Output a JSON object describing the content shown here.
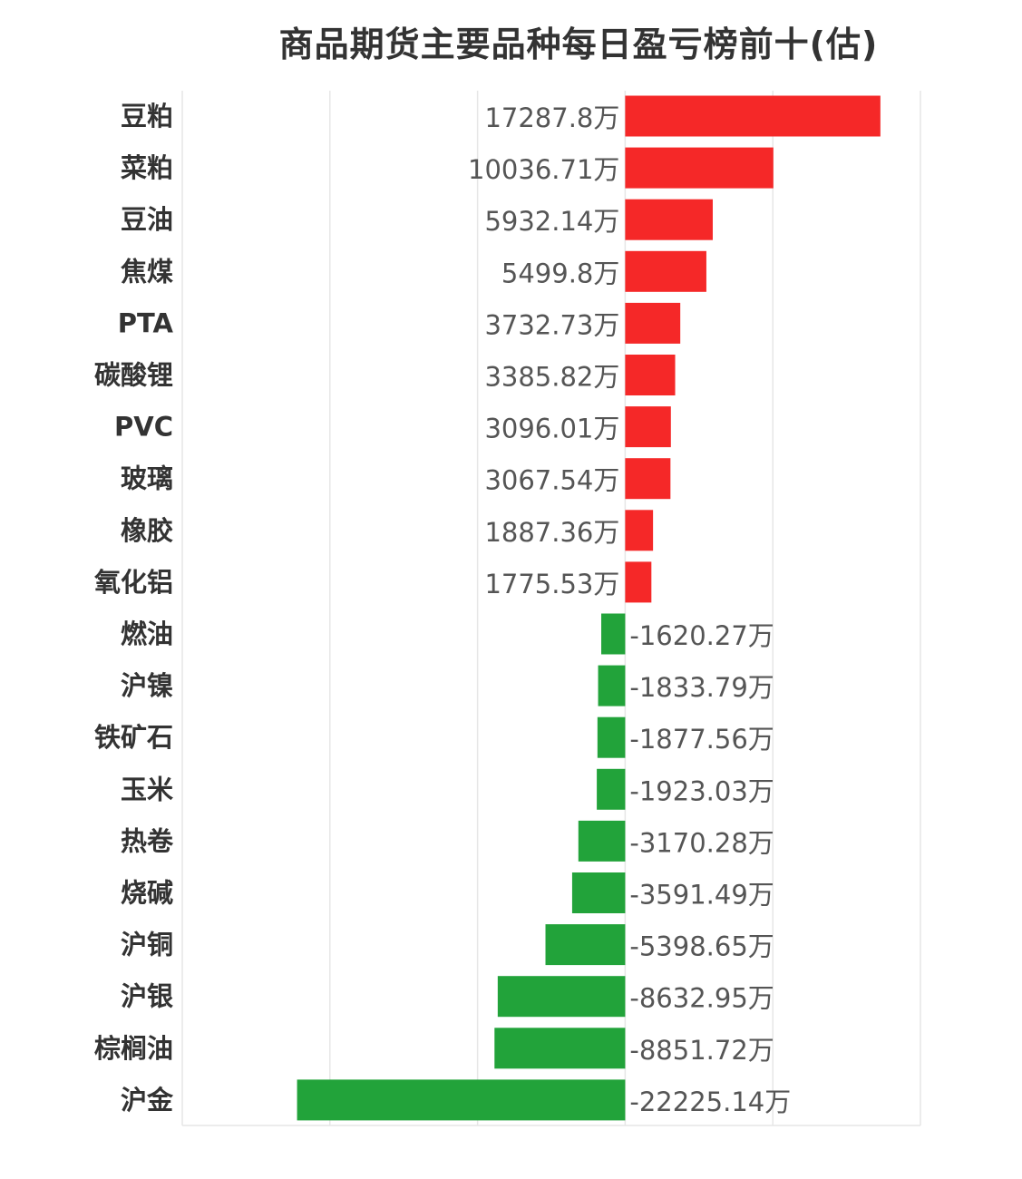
{
  "chart_data": {
    "type": "bar",
    "orientation": "horizontal",
    "title": "商品期货主要品种每日盈亏榜前十(估)",
    "unit": "万",
    "categories": [
      "豆粕",
      "菜粕",
      "豆油",
      "焦煤",
      "PTA",
      "碳酸锂",
      "PVC",
      "玻璃",
      "橡胶",
      "氧化铝",
      "燃油",
      "沪镍",
      "铁矿石",
      "玉米",
      "热卷",
      "烧碱",
      "沪铜",
      "沪银",
      "棕榈油",
      "沪金"
    ],
    "values": [
      17287.8,
      10036.71,
      5932.14,
      5499.8,
      3732.73,
      3385.82,
      3096.01,
      3067.54,
      1887.36,
      1775.53,
      -1620.27,
      -1833.79,
      -1877.56,
      -1923.03,
      -3170.28,
      -3591.49,
      -5398.65,
      -8632.95,
      -8851.72,
      -22225.14
    ],
    "value_labels": [
      "17287.8万",
      "10036.71万",
      "5932.14万",
      "5499.8万",
      "3732.73万",
      "3385.82万",
      "3096.01万",
      "3067.54万",
      "1887.36万",
      "1775.53万",
      "-1620.27万",
      "-1833.79万",
      "-1877.56万",
      "-1923.03万",
      "-3170.28万",
      "-3591.49万",
      "-5398.65万",
      "-8632.95万",
      "-8851.72万",
      "-22225.14万"
    ],
    "xlim": [
      -30000,
      20000
    ],
    "grid": true,
    "colors": {
      "positive": "#f52828",
      "negative": "#22a33a",
      "grid": "#e6e6e6"
    }
  }
}
